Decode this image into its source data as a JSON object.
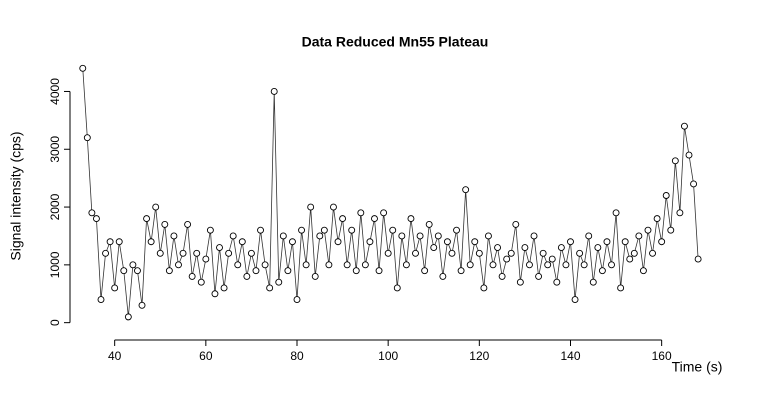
{
  "chart_data": {
    "type": "line",
    "title": "Data Reduced Mn55 Plateau",
    "x_label": "Time (s)",
    "y_label": "Signal intensity (cps)",
    "color": "#000000",
    "x": [
      33,
      34,
      35,
      36,
      37,
      38,
      39,
      40,
      41,
      42,
      43,
      44,
      45,
      46,
      47,
      48,
      49,
      50,
      51,
      52,
      53,
      54,
      55,
      56,
      57,
      58,
      59,
      60,
      61,
      62,
      63,
      64,
      65,
      66,
      67,
      68,
      69,
      70,
      71,
      72,
      73,
      74,
      75,
      76,
      77,
      78,
      79,
      80,
      81,
      82,
      83,
      84,
      85,
      86,
      87,
      88,
      89,
      90,
      91,
      92,
      93,
      94,
      95,
      96,
      97,
      98,
      99,
      100,
      101,
      102,
      103,
      104,
      105,
      106,
      107,
      108,
      109,
      110,
      111,
      112,
      113,
      114,
      115,
      116,
      117,
      118,
      119,
      120,
      121,
      122,
      123,
      124,
      125,
      126,
      127,
      128,
      129,
      130,
      131,
      132,
      133,
      134,
      135,
      136,
      137,
      138,
      139,
      140,
      141,
      142,
      143,
      144,
      145,
      146,
      147,
      148,
      149,
      150,
      151,
      152,
      153,
      154,
      155,
      156,
      157,
      158,
      159,
      160,
      161,
      162,
      163,
      164,
      165,
      166,
      167,
      168
    ],
    "values": [
      4400,
      3200,
      1900,
      1800,
      400,
      1200,
      1400,
      600,
      1400,
      900,
      100,
      1000,
      900,
      300,
      1800,
      1400,
      2000,
      1200,
      1700,
      900,
      1500,
      1000,
      1200,
      1700,
      800,
      1200,
      700,
      1100,
      1600,
      500,
      1300,
      600,
      1200,
      1500,
      1000,
      1400,
      800,
      1200,
      900,
      1600,
      1000,
      600,
      4000,
      700,
      1500,
      900,
      1400,
      400,
      1600,
      1000,
      2000,
      800,
      1500,
      1600,
      1000,
      2000,
      1400,
      1800,
      1000,
      1600,
      900,
      1900,
      1000,
      1400,
      1800,
      900,
      1900,
      1200,
      1600,
      600,
      1500,
      1000,
      1800,
      1200,
      1500,
      900,
      1700,
      1300,
      1500,
      800,
      1400,
      1200,
      1600,
      900,
      2300,
      1000,
      1400,
      1200,
      600,
      1500,
      1000,
      1300,
      800,
      1100,
      1200,
      1700,
      700,
      1300,
      1000,
      1500,
      800,
      1200,
      1000,
      1100,
      700,
      1300,
      1000,
      1400,
      400,
      1200,
      1000,
      1500,
      700,
      1300,
      900,
      1400,
      1000,
      1900,
      600,
      1400,
      1100,
      1200,
      1500,
      900,
      1600,
      1200,
      1800,
      1400,
      2200,
      1600,
      2800,
      1900,
      3400,
      2900,
      2400,
      1100
    ],
    "xlim": [
      30.2,
      172.8
    ],
    "ylim": [
      -300,
      4700
    ],
    "xticks": [
      40,
      60,
      80,
      100,
      120,
      140,
      160
    ],
    "yticks": [
      0,
      1000,
      2000,
      3000,
      4000
    ]
  }
}
